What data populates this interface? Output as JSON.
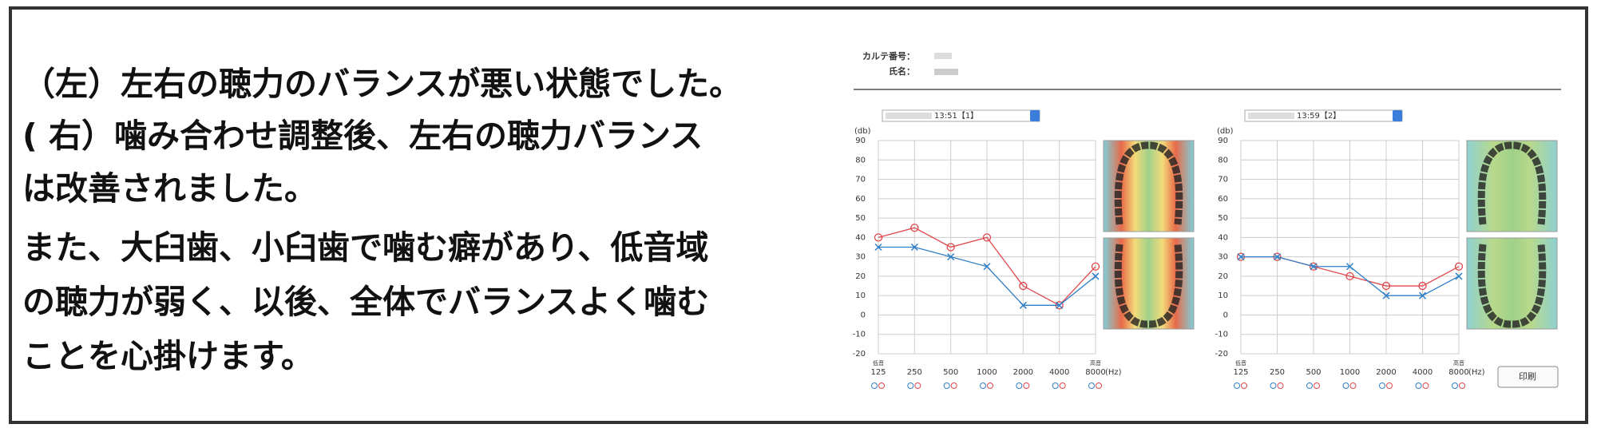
{
  "caption": {
    "lines": [
      "（左）左右の聴力のバランスが悪い状態でした。",
      "( 右）噛み合わせ調整後、左右の聴力バランス",
      "は改善されました。",
      "また、大臼歯、小臼歯で噛む癖があり、低音域",
      "の聴力が弱く、以後、全体でバランスよく噛む",
      "ことを心掛けます。"
    ]
  },
  "record": {
    "chart_no_label": "カルテ番号：",
    "name_label": "氏名：",
    "print_button": "印刷"
  },
  "chart_data": [
    {
      "type": "line",
      "selector": "13:51【1】",
      "y_label": "(db)",
      "x_unit": "(Hz)",
      "low_label": "低音",
      "high_label": "高音",
      "categories": [
        "125",
        "250",
        "500",
        "1000",
        "2000",
        "4000",
        "8000"
      ],
      "ylim": [
        -20,
        90
      ],
      "yticks": [
        -20,
        -10,
        0,
        10,
        20,
        30,
        40,
        50,
        60,
        70,
        80,
        90
      ],
      "grid": true,
      "series": [
        {
          "color": "#e0474c",
          "marker": "circle",
          "values": [
            40,
            45,
            35,
            40,
            15,
            5,
            25
          ]
        },
        {
          "color": "#2f7fc8",
          "marker": "cross",
          "values": [
            35,
            35,
            30,
            25,
            5,
            5,
            20
          ]
        }
      ]
    },
    {
      "type": "line",
      "selector": "13:59【2】",
      "y_label": "(db)",
      "x_unit": "(Hz)",
      "low_label": "低音",
      "high_label": "高音",
      "categories": [
        "125",
        "250",
        "500",
        "1000",
        "2000",
        "4000",
        "8000"
      ],
      "ylim": [
        -20,
        90
      ],
      "yticks": [
        -20,
        -10,
        0,
        10,
        20,
        30,
        40,
        50,
        60,
        70,
        80,
        90
      ],
      "grid": true,
      "series": [
        {
          "color": "#e0474c",
          "marker": "circle",
          "values": [
            30,
            30,
            25,
            20,
            15,
            15,
            25
          ]
        },
        {
          "color": "#2f7fc8",
          "marker": "cross",
          "values": [
            30,
            30,
            25,
            25,
            10,
            10,
            20
          ]
        }
      ]
    }
  ]
}
